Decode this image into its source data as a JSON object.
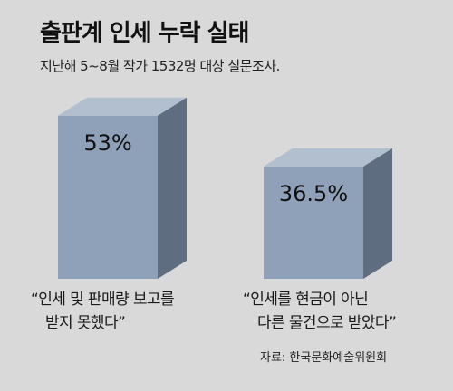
{
  "header": {
    "title": "출판계 인세 누락 실태",
    "subtitle": "지난해 5~8월 작가 1532명 대상 설문조사."
  },
  "colors": {
    "background": "#d9d9d9",
    "bar_front": "#8fa1b8",
    "bar_side": "#5f6d80",
    "bar_top": "#b2bfcf"
  },
  "chart_data": {
    "type": "bar",
    "style": "3d",
    "title": "출판계 인세 누락 실태",
    "subtitle": "지난해 5~8월 작가 1532명 대상 설문조사.",
    "categories": [
      "“인세 및 판매량 보고를 받지 못했다”",
      "“인세를 현금이 아닌 다른 물건으로 받았다”"
    ],
    "values": [
      53,
      36.5
    ],
    "value_labels": [
      "53%",
      "36.5%"
    ],
    "ylim": [
      0,
      100
    ],
    "grid": false,
    "legend": "none"
  },
  "captions": [
    {
      "line1": "“인세 및 판매량 보고를",
      "line2": "받지 못했다”"
    },
    {
      "line1": "“인세를 현금이 아닌",
      "line2": "다른 물건으로 받았다”"
    }
  ],
  "source": "자료: 한국문화예술위원회"
}
